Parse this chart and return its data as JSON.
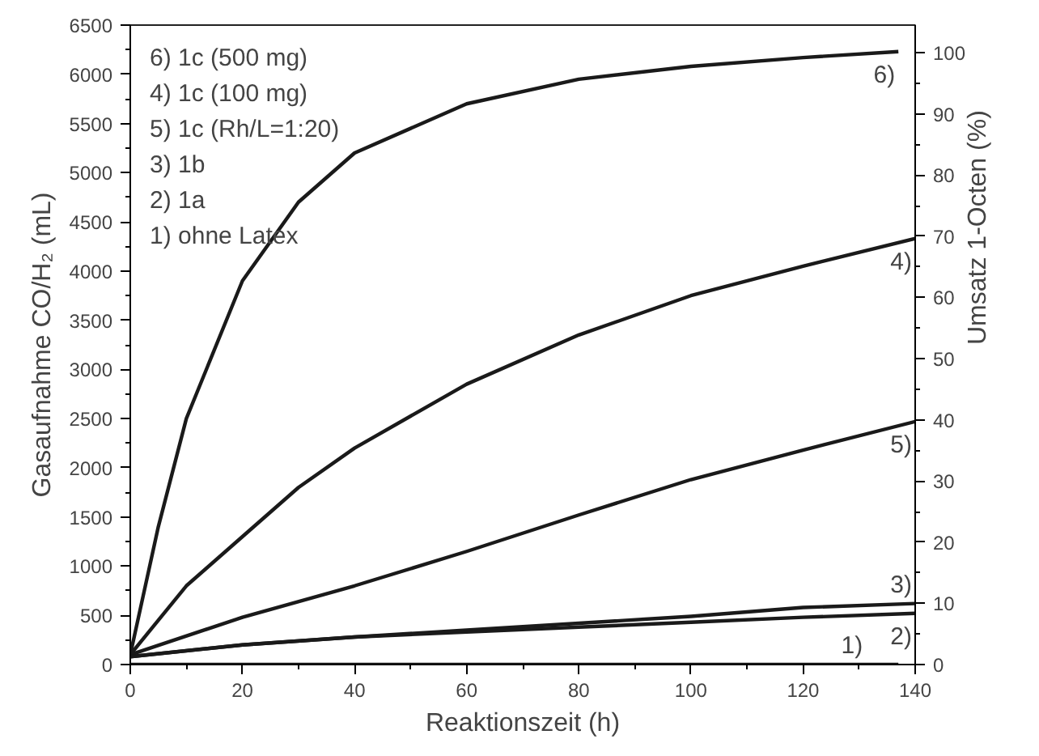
{
  "chart_data": {
    "type": "line",
    "xlabel": "Reaktionszeit (h)",
    "ylabel": "Gasaufnahme CO/H₂ (mL)",
    "y2label": "Umsatz 1-Octen (%)",
    "xlim": [
      0,
      140
    ],
    "xticks": [
      0,
      20,
      40,
      60,
      80,
      100,
      120,
      140
    ],
    "ylim": [
      0,
      6500
    ],
    "yticks": [
      0,
      500,
      1000,
      1500,
      2000,
      2500,
      3000,
      3500,
      4000,
      4500,
      5000,
      5500,
      6000,
      6500
    ],
    "y2lim": [
      0,
      104.5
    ],
    "y2ticks": [
      0,
      10,
      20,
      30,
      40,
      50,
      60,
      70,
      80,
      90,
      100
    ],
    "grid": false,
    "marker": "none",
    "line_style": "solid",
    "annotations": [
      "6) 1c (500 mg)",
      "4) 1c (100 mg)",
      "5) 1c (Rh/L=1:20)",
      "3) 1b",
      "2) 1a",
      "1) ohne Latex"
    ],
    "series": [
      {
        "name": "6)",
        "color": "#1a1a1a",
        "x": [
          0,
          5,
          10,
          20,
          30,
          40,
          60,
          80,
          100,
          120,
          137
        ],
        "values": [
          100,
          1400,
          2500,
          3900,
          4700,
          5200,
          5700,
          5950,
          6080,
          6170,
          6230
        ]
      },
      {
        "name": "4)",
        "color": "#1a1a1a",
        "x": [
          0,
          10,
          20,
          30,
          40,
          60,
          80,
          100,
          120,
          140
        ],
        "values": [
          100,
          800,
          1300,
          1800,
          2200,
          2850,
          3350,
          3750,
          4050,
          4330
        ]
      },
      {
        "name": "5)",
        "color": "#1a1a1a",
        "x": [
          0,
          20,
          40,
          60,
          80,
          100,
          120,
          140
        ],
        "values": [
          100,
          480,
          800,
          1150,
          1520,
          1880,
          2180,
          2470
        ]
      },
      {
        "name": "3)",
        "color": "#1a1a1a",
        "x": [
          0,
          20,
          40,
          60,
          80,
          100,
          120,
          140
        ],
        "values": [
          80,
          200,
          280,
          350,
          420,
          490,
          580,
          620
        ]
      },
      {
        "name": "2)",
        "color": "#1a1a1a",
        "x": [
          0,
          20,
          40,
          60,
          80,
          100,
          120,
          140
        ],
        "values": [
          80,
          200,
          280,
          330,
          380,
          430,
          480,
          520
        ]
      },
      {
        "name": "1)",
        "color": "#1a1a1a",
        "x": [
          0,
          137
        ],
        "values": [
          0,
          0
        ]
      }
    ]
  }
}
